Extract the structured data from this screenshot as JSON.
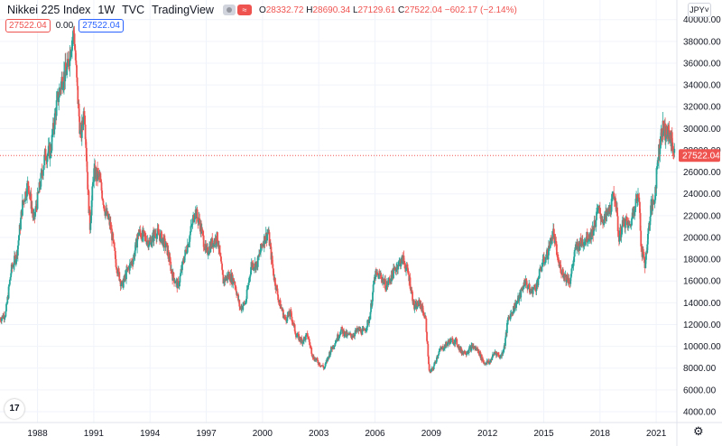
{
  "header": {
    "symbol": "Nikkei 225 Index",
    "interval": "1W",
    "exchange": "TVC",
    "source": "TradingView",
    "wave_icon": "≈",
    "o_label": "O",
    "o_value": "28332.72",
    "h_label": "H",
    "h_value": "28690.34",
    "l_label": "L",
    "l_value": "27129.61",
    "c_label": "C",
    "c_value": "27522.04",
    "change": "−602.17 (−2.14%)"
  },
  "legend_row": {
    "price_red": "27522.04",
    "volume": "0.00",
    "price_blue": "27522.04"
  },
  "currency": "JPY",
  "colors": {
    "up": "#26a69a",
    "down": "#ef5350",
    "grid": "#f0f3fa",
    "price_line": "#ef5350",
    "text": "#131722"
  },
  "icons": {
    "logo": "tradingview-logo-icon",
    "settings": "gear-icon",
    "visibility": "eye-icon",
    "chevron": "chevron-down-icon"
  },
  "logo_text": "17",
  "settings_glyph": "⚙",
  "chart_data": {
    "type": "line",
    "subtype": "candlestick-weekly",
    "title": "Nikkei 225 Index",
    "y_ticks": [
      "4000.00",
      "6000.00",
      "8000.00",
      "10000.00",
      "12000.00",
      "14000.00",
      "16000.00",
      "18000.00",
      "20000.00",
      "22000.00",
      "24000.00",
      "26000.00",
      "28000.00",
      "30000.00",
      "32000.00",
      "34000.00",
      "36000.00",
      "38000.00",
      "40000.00"
    ],
    "x_ticks": [
      "1988",
      "1991",
      "1994",
      "1997",
      "2000",
      "2003",
      "2006",
      "2009",
      "2012",
      "2015",
      "2018",
      "2021"
    ],
    "x_tick_years": [
      1988.0,
      1991.0,
      1994.0,
      1997.0,
      2000.0,
      2003.0,
      2006.0,
      2009.0,
      2012.0,
      2015.0,
      2018.0,
      2021.0
    ],
    "xlim": [
      1986.0,
      2022.1
    ],
    "ylim": [
      3000,
      41800
    ],
    "y_axis_side": "right",
    "last_price_label": "27522.04",
    "last_price": 27522.04,
    "grid": true,
    "series": [
      {
        "x": [
          1986.0,
          1986.3,
          1986.6,
          1986.9,
          1987.2,
          1987.5,
          1987.8,
          1988.1,
          1988.4,
          1988.7,
          1989.0,
          1989.3,
          1989.6,
          1989.8,
          1989.95,
          1990.1,
          1990.3,
          1990.5,
          1990.7,
          1990.8,
          1991.0,
          1991.3,
          1991.6,
          1991.9,
          1992.2,
          1992.5,
          1992.8,
          1993.1,
          1993.4,
          1993.7,
          1994.0,
          1994.3,
          1994.6,
          1994.9,
          1995.2,
          1995.5,
          1995.8,
          1996.1,
          1996.4,
          1996.7,
          1997.0,
          1997.3,
          1997.6,
          1997.9,
          1998.2,
          1998.5,
          1998.8,
          1999.1,
          1999.4,
          1999.7,
          2000.0,
          2000.3,
          2000.6,
          2000.9,
          2001.2,
          2001.5,
          2001.8,
          2002.1,
          2002.4,
          2002.7,
          2003.0,
          2003.3,
          2003.6,
          2003.9,
          2004.2,
          2004.5,
          2004.8,
          2005.1,
          2005.4,
          2005.7,
          2006.0,
          2006.3,
          2006.6,
          2006.9,
          2007.2,
          2007.5,
          2007.8,
          2008.1,
          2008.4,
          2008.7,
          2008.9,
          2009.1,
          2009.4,
          2009.7,
          2010.0,
          2010.3,
          2010.6,
          2010.9,
          2011.2,
          2011.5,
          2011.8,
          2012.1,
          2012.4,
          2012.7,
          2012.9,
          2013.1,
          2013.4,
          2013.7,
          2014.0,
          2014.3,
          2014.6,
          2014.9,
          2015.2,
          2015.5,
          2015.8,
          2016.1,
          2016.4,
          2016.7,
          2017.0,
          2017.3,
          2017.6,
          2017.9,
          2018.2,
          2018.5,
          2018.8,
          2019.0,
          2019.3,
          2019.6,
          2019.9,
          2020.1,
          2020.2,
          2020.4,
          2020.7,
          2020.9,
          2021.1,
          2021.3,
          2021.6,
          2021.8,
          2022.0
        ],
        "values": [
          12500,
          13000,
          17000,
          18500,
          23000,
          25000,
          21500,
          24500,
          27500,
          28000,
          32000,
          34500,
          35500,
          38000,
          38900,
          34000,
          29000,
          32000,
          24000,
          21000,
          26000,
          25500,
          22500,
          21000,
          17500,
          15500,
          17000,
          18000,
          20500,
          20000,
          19500,
          20500,
          20000,
          19000,
          16500,
          15500,
          18000,
          20000,
          22500,
          21000,
          18500,
          19500,
          20000,
          16000,
          16500,
          16000,
          13500,
          14000,
          17500,
          17500,
          19500,
          20500,
          16500,
          14000,
          12500,
          13000,
          11000,
          10500,
          11000,
          9000,
          8500,
          8000,
          9500,
          10500,
          11500,
          11000,
          11000,
          11500,
          11300,
          12500,
          16500,
          16500,
          15500,
          16500,
          17500,
          18000,
          16500,
          13500,
          14000,
          12500,
          7500,
          8000,
          9500,
          10000,
          10500,
          10500,
          9500,
          9500,
          10000,
          9600,
          8500,
          8500,
          9500,
          9000,
          10000,
          12500,
          13500,
          14500,
          16000,
          15000,
          15500,
          17500,
          18500,
          20500,
          17500,
          16500,
          16000,
          19000,
          19500,
          20000,
          20500,
          22500,
          21500,
          22500,
          24000,
          20000,
          21500,
          21000,
          23500,
          23500,
          19000,
          17500,
          22500,
          23500,
          27500,
          30000,
          29500,
          29000,
          27500
        ]
      }
    ]
  }
}
